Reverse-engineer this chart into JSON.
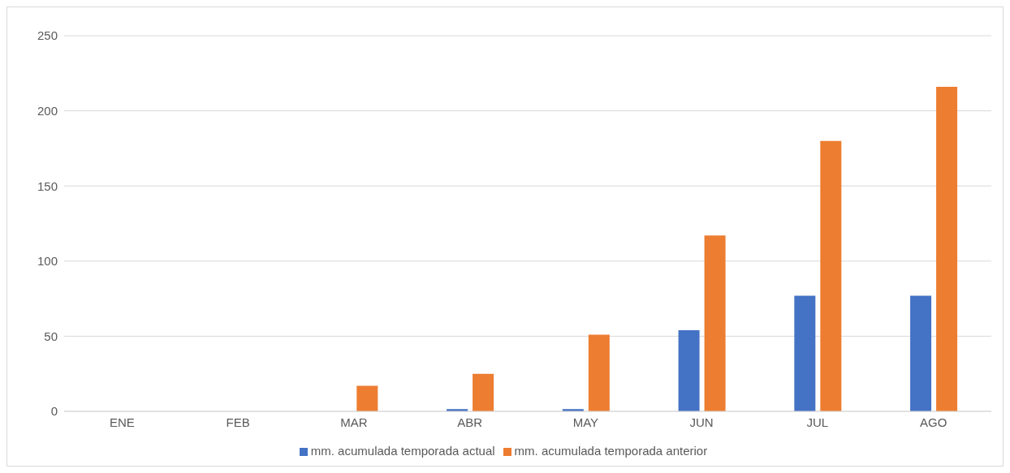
{
  "chart_data": {
    "type": "bar",
    "categories": [
      "ENE",
      "FEB",
      "MAR",
      "ABR",
      "MAY",
      "JUN",
      "JUL",
      "AGO"
    ],
    "series": [
      {
        "name": "mm. acumulada temporada actual",
        "color": "#4472c4",
        "values": [
          0,
          0,
          0,
          1.5,
          1.5,
          54,
          77,
          77
        ]
      },
      {
        "name": "mm. acumulada temporada anterior",
        "color": "#ed7d31",
        "values": [
          0,
          0,
          17,
          25,
          51,
          117,
          180,
          216
        ]
      }
    ],
    "ylim": [
      0,
      250
    ],
    "yticks": [
      0,
      50,
      100,
      150,
      200,
      250
    ],
    "grid": "y",
    "legend": "bottom"
  }
}
